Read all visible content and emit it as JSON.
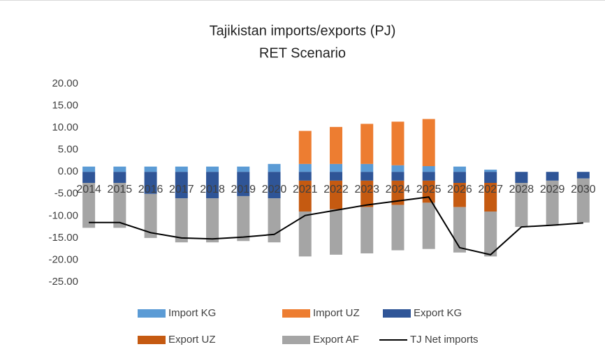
{
  "chart_data": {
    "type": "bar",
    "stacked": true,
    "title": "Tajikistan imports/exports (PJ)",
    "subtitle": "RET Scenario",
    "categories": [
      "2014",
      "2015",
      "2016",
      "2017",
      "2018",
      "2019",
      "2020",
      "2021",
      "2022",
      "2023",
      "2024",
      "2025",
      "2026",
      "2027",
      "2028",
      "2029",
      "2030"
    ],
    "series": [
      {
        "name": "Import KG",
        "color": "#5b9bd5",
        "values": [
          1.2,
          1.2,
          1.2,
          1.2,
          1.2,
          1.2,
          1.8,
          1.8,
          1.8,
          1.8,
          1.5,
          1.3,
          1.2,
          0.5,
          0,
          0,
          0
        ]
      },
      {
        "name": "Import UZ",
        "color": "#ed7d31",
        "values": [
          0,
          0,
          0,
          0,
          0,
          0,
          0,
          7.5,
          8.4,
          9.1,
          9.9,
          10.7,
          0,
          0,
          0,
          0,
          0
        ]
      },
      {
        "name": "Export KG",
        "color": "#2f5597",
        "values": [
          -2.5,
          -2.5,
          -5,
          -6,
          -6,
          -5.5,
          -6,
          -2,
          -2,
          -2,
          -2,
          -2,
          -2.5,
          -2.5,
          -2.5,
          -2,
          -1.5
        ]
      },
      {
        "name": "Export UZ",
        "color": "#c55a11",
        "values": [
          0,
          0,
          0,
          0,
          0,
          0,
          0,
          -7,
          -6.5,
          -6,
          -5.5,
          -5,
          -5.5,
          -6.5,
          0,
          0,
          0
        ]
      },
      {
        "name": "Export AF",
        "color": "#a5a5a5",
        "values": [
          -10.2,
          -10.2,
          -10,
          -10,
          -10,
          -10.2,
          -10,
          -10.2,
          -10.3,
          -10.5,
          -10.3,
          -10.5,
          -10.3,
          -10.2,
          -10,
          -10.2,
          -10
        ]
      },
      {
        "name": "TJ Net imports",
        "type": "line",
        "color": "#000000",
        "values": [
          -11.5,
          -11.5,
          -13.8,
          -15,
          -15.2,
          -14.8,
          -14.2,
          -9.9,
          -8.7,
          -7.5,
          -6.6,
          -5.7,
          -17.2,
          -18.8,
          -12.5,
          -12.1,
          -11.6
        ]
      }
    ],
    "ylim": [
      -25,
      20
    ],
    "yticks": [
      {
        "value": -25,
        "label": "-25.00"
      },
      {
        "value": -20,
        "label": "-20.00"
      },
      {
        "value": -15,
        "label": "-15.00"
      },
      {
        "value": -10,
        "label": "-10.00"
      },
      {
        "value": -5,
        "label": "-5.00"
      },
      {
        "value": 0,
        "label": "0.00"
      },
      {
        "value": 5,
        "label": "5.00"
      },
      {
        "value": 10,
        "label": "10.00"
      },
      {
        "value": 15,
        "label": "15.00"
      },
      {
        "value": 20,
        "label": "20.00"
      }
    ],
    "grid": false,
    "legend": "bottom"
  }
}
